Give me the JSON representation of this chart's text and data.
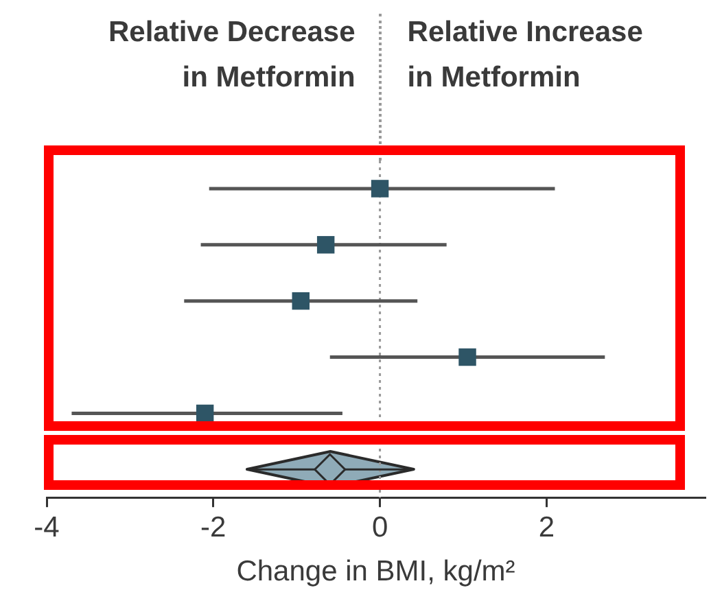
{
  "chart_data": {
    "type": "scatter",
    "orientation": "horizontal",
    "xlabel": "Change in BMI, kg/m²",
    "annotations": [
      "Relative Decrease\nin Metformin",
      "Relative Increase\nin Metformin"
    ],
    "categories": [
      null,
      null,
      null,
      null,
      null,
      null
    ],
    "xlim": [
      -4,
      3.9
    ],
    "xticks": [
      -4,
      -2,
      0,
      2
    ],
    "ref_lines": [
      {
        "axis": "x",
        "value": 0,
        "line_style": "dotted",
        "color": "#999999"
      }
    ],
    "series": [
      {
        "color": "#2e5566",
        "marker": "square",
        "values": [
          0,
          -0.65,
          -0.95,
          1.05,
          -2.1,
          null
        ],
        "errors": [
          [
            -2.05,
            2.1
          ],
          [
            -2.15,
            0.8
          ],
          [
            -2.35,
            0.45
          ],
          [
            -0.6,
            2.7
          ],
          [
            -3.7,
            -0.45
          ],
          null
        ]
      },
      {
        "color": "#8fabb8",
        "marker": "diamond",
        "values": [
          null,
          null,
          null,
          null,
          null,
          -0.6
        ],
        "errors": [
          null,
          null,
          null,
          null,
          null,
          [
            -1.6,
            0.4
          ]
        ]
      }
    ]
  }
}
